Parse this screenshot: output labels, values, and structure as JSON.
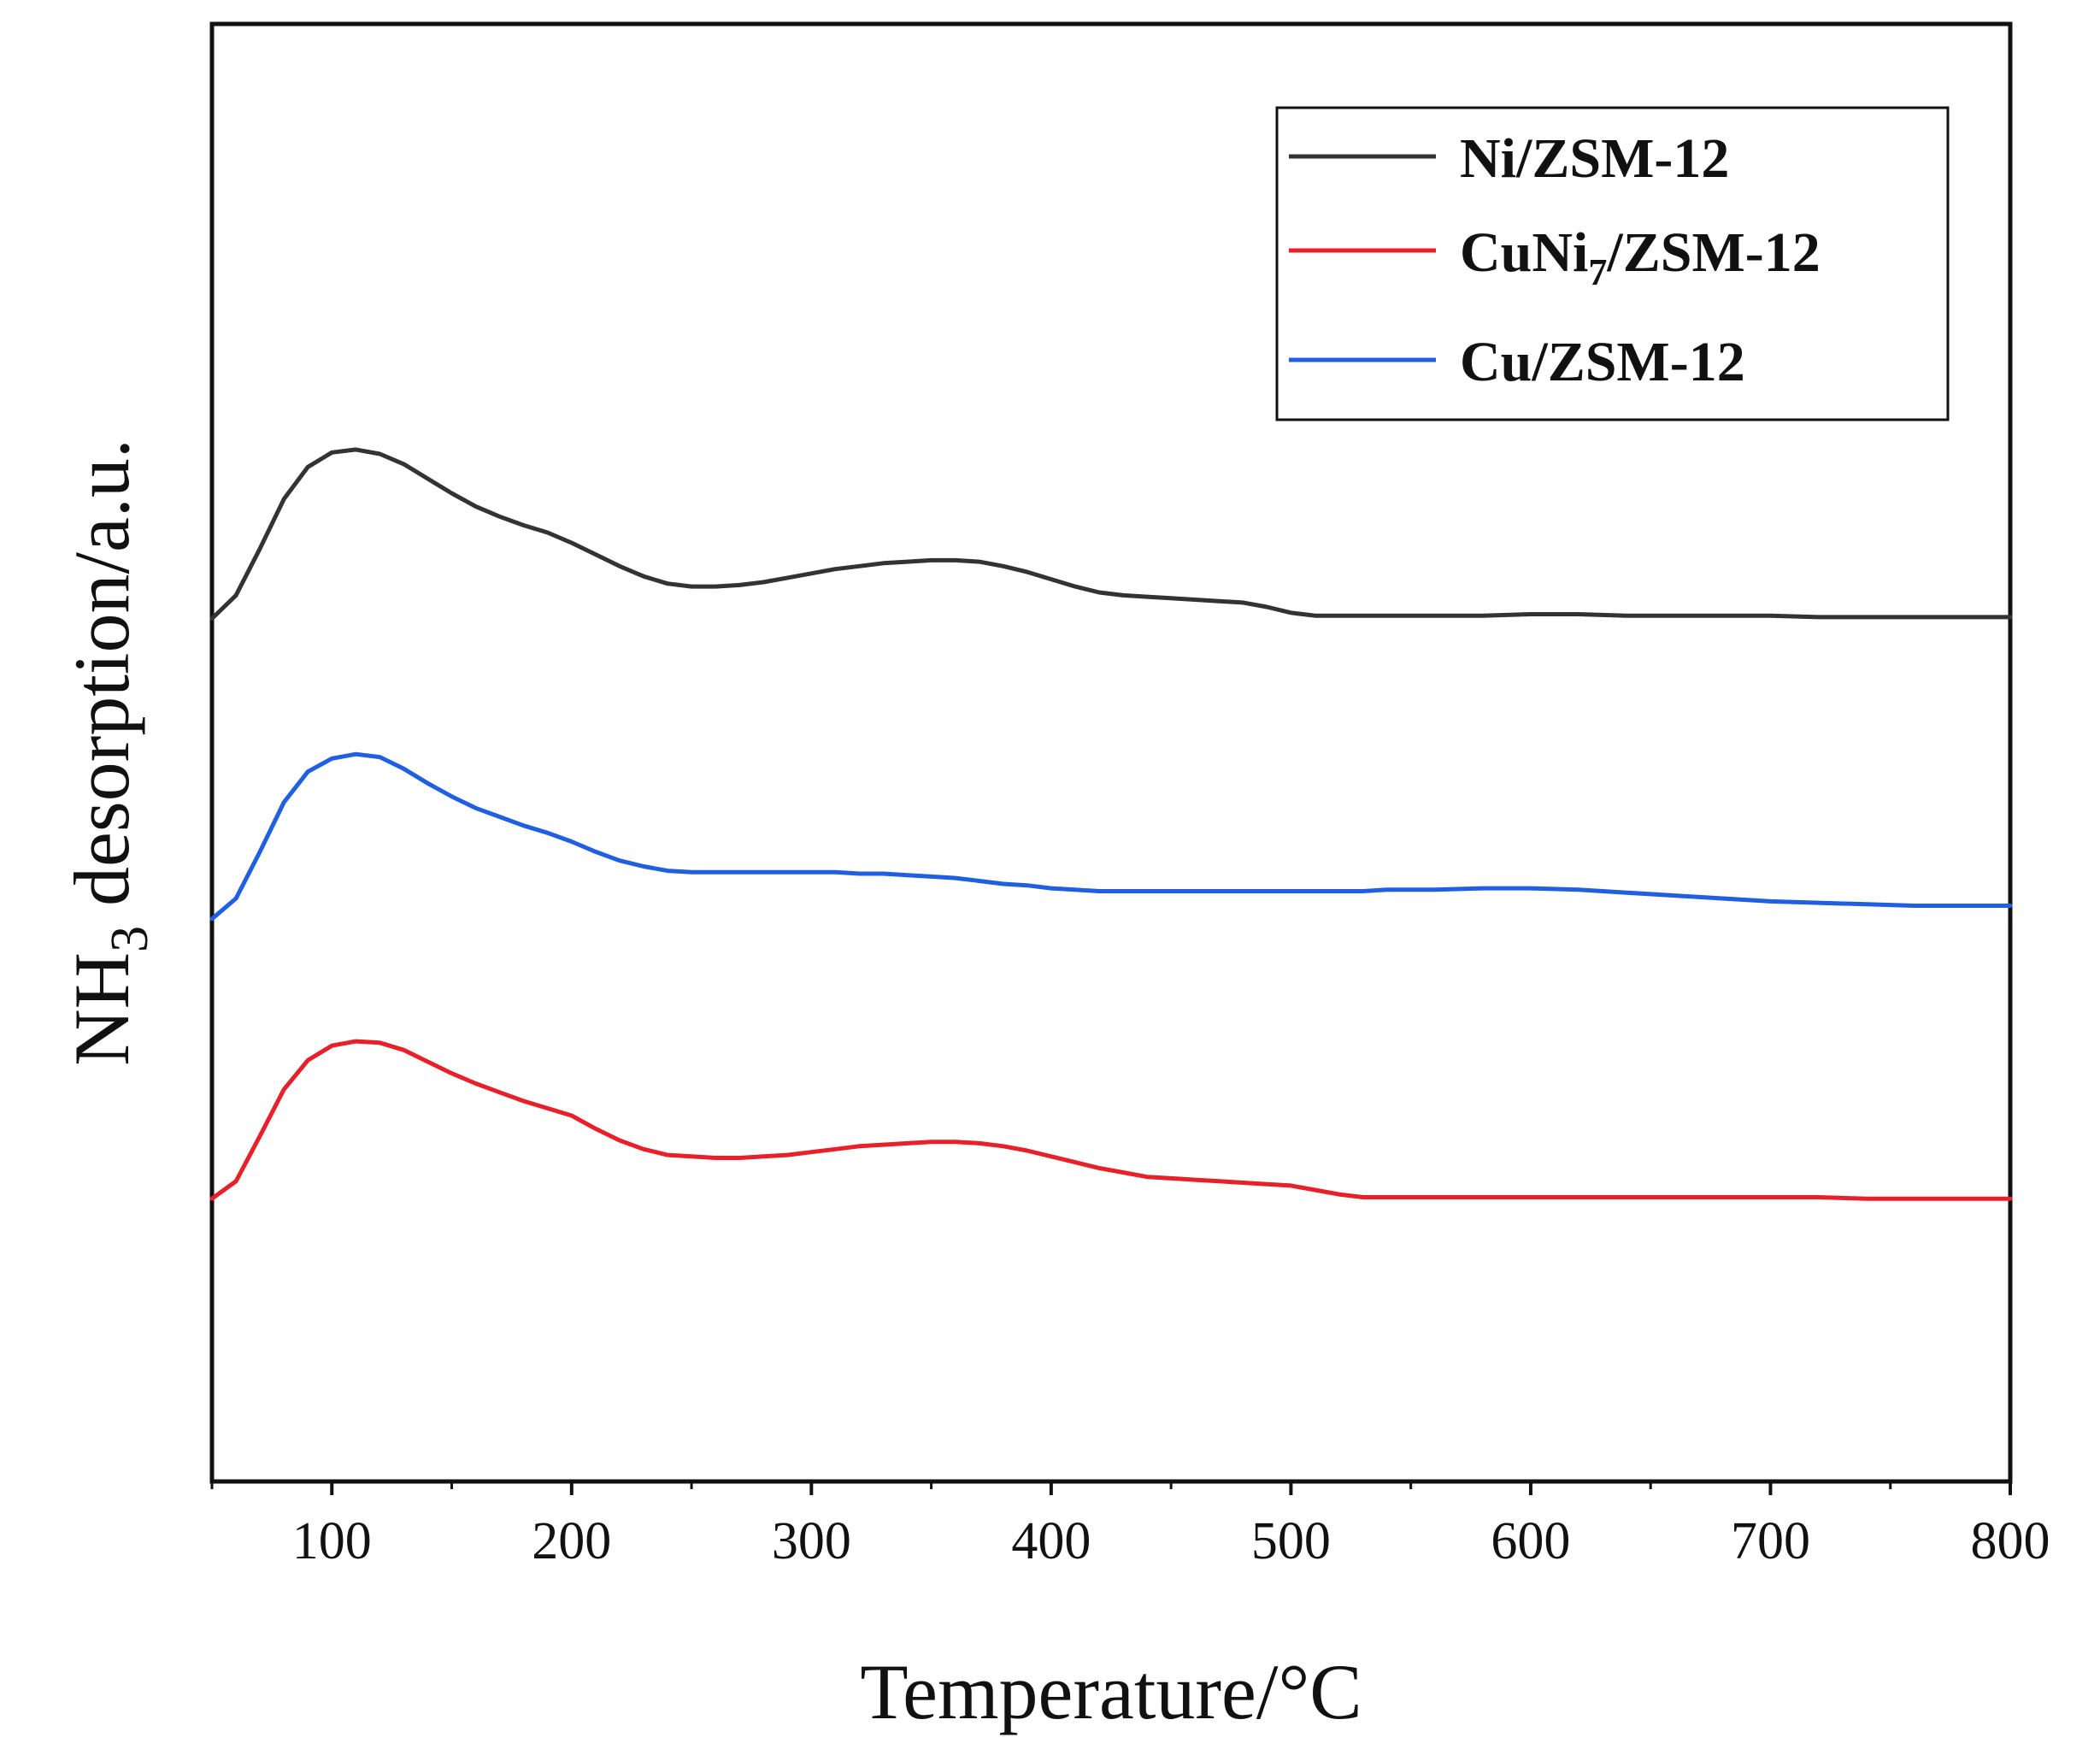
{
  "chart_data": {
    "type": "line",
    "title": "",
    "xlabel": "Temperature/°C",
    "ylabel_main": "NH",
    "ylabel_sub": "3",
    "ylabel_rest": " desorption/a.u.",
    "xlim": [
      50,
      800
    ],
    "ylim": [
      0,
      100
    ],
    "x_ticks": [
      100,
      200,
      300,
      400,
      500,
      600,
      700,
      800
    ],
    "x_minor_ticks": [
      50,
      150,
      250,
      350,
      450,
      550,
      650,
      750
    ],
    "y_ticks_shown": false,
    "grid": false,
    "legend_position": "top-right",
    "x": [
      50,
      60,
      70,
      80,
      90,
      100,
      110,
      120,
      130,
      140,
      150,
      160,
      170,
      180,
      190,
      200,
      210,
      220,
      230,
      240,
      250,
      260,
      270,
      280,
      290,
      300,
      310,
      320,
      330,
      340,
      350,
      360,
      370,
      380,
      390,
      400,
      410,
      420,
      430,
      440,
      450,
      460,
      470,
      480,
      490,
      500,
      510,
      520,
      530,
      540,
      560,
      580,
      600,
      620,
      640,
      660,
      680,
      700,
      720,
      740,
      760,
      780,
      800
    ],
    "series": [
      {
        "name": "Ni/ZSM-12",
        "name_main": "Ni/ZSM-12",
        "name_sub": "",
        "name_rest": "",
        "color": "#333333",
        "values": [
          59.2,
          60.8,
          64.0,
          67.4,
          69.6,
          70.6,
          70.8,
          70.5,
          69.8,
          68.8,
          67.8,
          66.9,
          66.2,
          65.6,
          65.1,
          64.4,
          63.6,
          62.8,
          62.1,
          61.6,
          61.4,
          61.4,
          61.5,
          61.7,
          62.0,
          62.3,
          62.6,
          62.8,
          63.0,
          63.1,
          63.2,
          63.2,
          63.1,
          62.8,
          62.4,
          61.9,
          61.4,
          61.0,
          60.8,
          60.7,
          60.6,
          60.5,
          60.4,
          60.3,
          60.0,
          59.6,
          59.4,
          59.4,
          59.4,
          59.4,
          59.4,
          59.4,
          59.5,
          59.5,
          59.4,
          59.4,
          59.4,
          59.4,
          59.3,
          59.3,
          59.3,
          59.3,
          59.3
        ]
      },
      {
        "name": "CuNi7/ZSM-12",
        "name_main": "CuNi",
        "name_sub": "7",
        "name_rest": "/ZSM-12",
        "color": "#e8202a",
        "values": [
          19.4,
          20.6,
          23.7,
          26.9,
          28.9,
          29.9,
          30.2,
          30.1,
          29.6,
          28.8,
          28.0,
          27.3,
          26.7,
          26.1,
          25.6,
          25.1,
          24.2,
          23.4,
          22.8,
          22.4,
          22.3,
          22.2,
          22.2,
          22.3,
          22.4,
          22.6,
          22.8,
          23.0,
          23.1,
          23.2,
          23.3,
          23.3,
          23.2,
          23.0,
          22.7,
          22.3,
          21.9,
          21.5,
          21.2,
          20.9,
          20.8,
          20.7,
          20.6,
          20.5,
          20.4,
          20.3,
          20.0,
          19.7,
          19.5,
          19.5,
          19.5,
          19.5,
          19.5,
          19.5,
          19.5,
          19.5,
          19.5,
          19.5,
          19.5,
          19.4,
          19.4,
          19.4,
          19.4
        ]
      },
      {
        "name": "Cu/ZSM-12",
        "name_main": "Cu/ZSM-12",
        "name_sub": "",
        "name_rest": "",
        "color": "#1f5fe0",
        "values": [
          38.6,
          40.0,
          43.2,
          46.6,
          48.7,
          49.6,
          49.9,
          49.7,
          48.9,
          47.9,
          47.0,
          46.2,
          45.6,
          45.0,
          44.5,
          43.9,
          43.2,
          42.6,
          42.2,
          41.9,
          41.8,
          41.8,
          41.8,
          41.8,
          41.8,
          41.8,
          41.8,
          41.7,
          41.7,
          41.6,
          41.5,
          41.4,
          41.2,
          41.0,
          40.9,
          40.7,
          40.6,
          40.5,
          40.5,
          40.5,
          40.5,
          40.5,
          40.5,
          40.5,
          40.5,
          40.5,
          40.5,
          40.5,
          40.5,
          40.6,
          40.6,
          40.7,
          40.7,
          40.6,
          40.4,
          40.2,
          40.0,
          39.8,
          39.7,
          39.6,
          39.5,
          39.5,
          39.5
        ]
      }
    ],
    "legend_order": [
      0,
      1,
      2
    ]
  }
}
